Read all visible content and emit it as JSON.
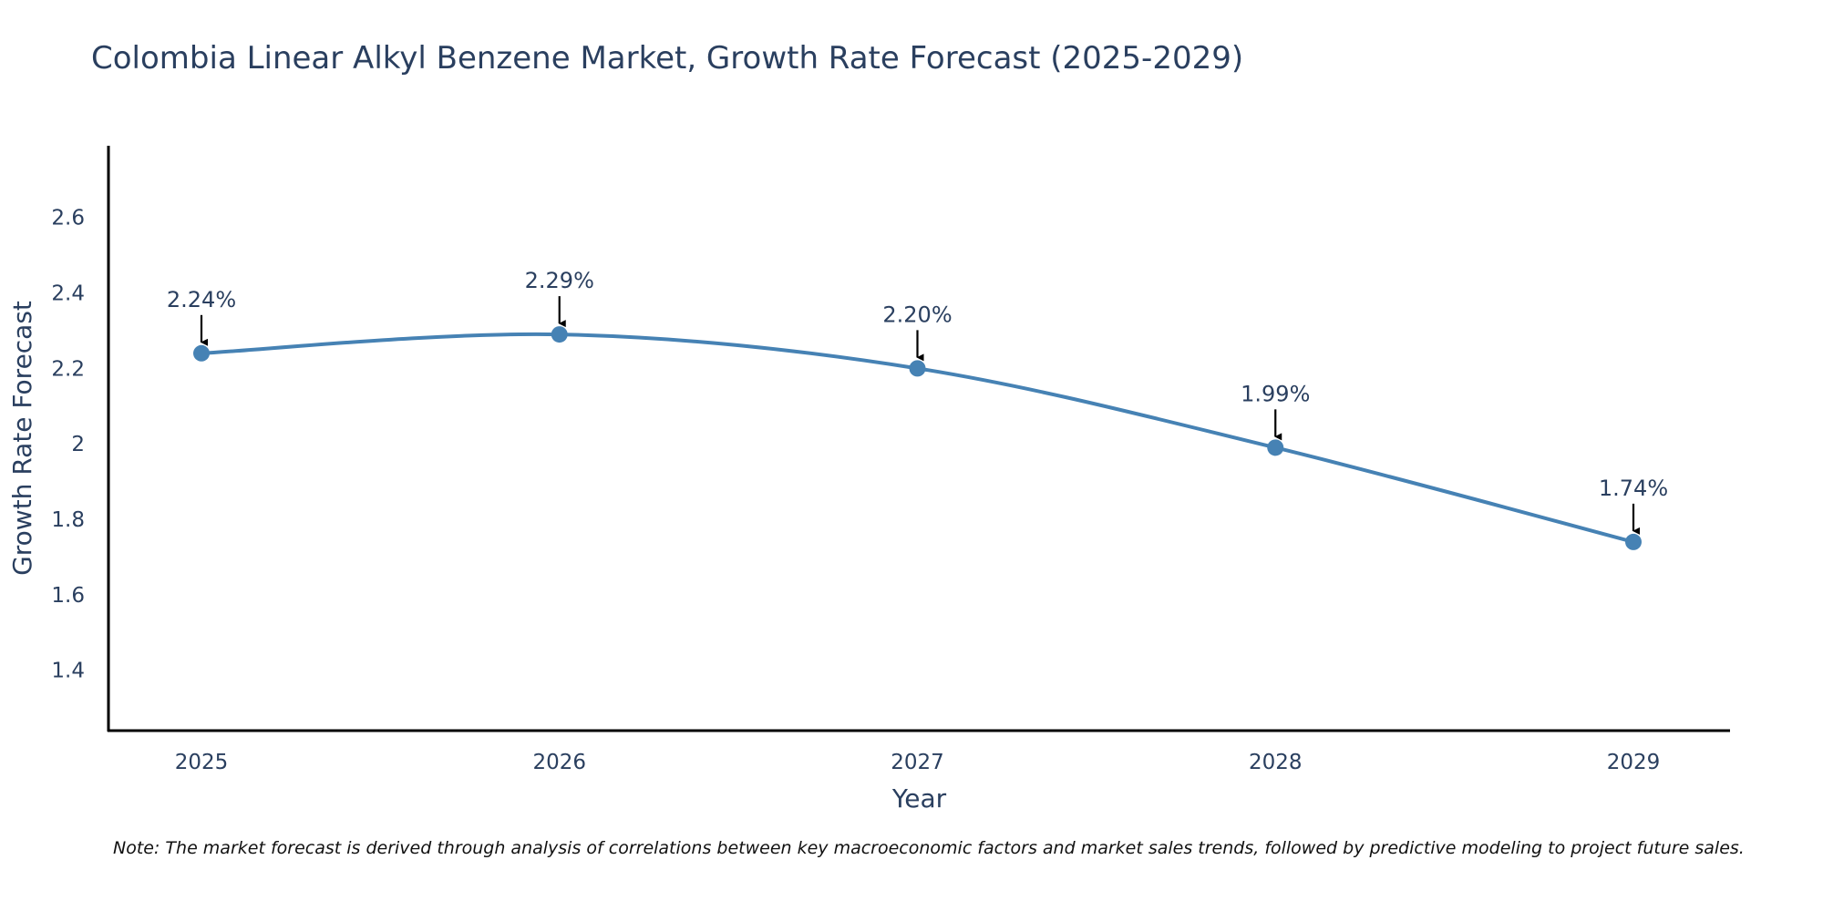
{
  "chart_data": {
    "type": "line",
    "title": "Colombia Linear Alkyl Benzene Market, Growth Rate Forecast (2025-2029)",
    "xlabel": "Year",
    "ylabel": "Growth Rate Forecast",
    "x": [
      "2025",
      "2026",
      "2027",
      "2028",
      "2029"
    ],
    "series": [
      {
        "values": [
          2.24,
          2.29,
          2.2,
          1.99,
          1.74
        ],
        "color": "#4682b4"
      }
    ],
    "data_labels": [
      "2.24%",
      "2.29%",
      "2.20%",
      "1.99%",
      "1.74%"
    ],
    "ylim": [
      1.24,
      2.79
    ],
    "yticks": [
      1.4,
      1.6,
      1.8,
      2,
      2.2,
      2.4,
      2.6
    ],
    "ytick_labels": [
      "1.4",
      "1.6",
      "1.8",
      "2",
      "2.2",
      "2.4",
      "2.6"
    ],
    "grid": false,
    "smoothed": true,
    "annotation_arrows": true
  },
  "note": "Note: The market forecast is derived through analysis of correlations between key macroeconomic factors and market sales trends, followed by predictive modeling to project future sales."
}
